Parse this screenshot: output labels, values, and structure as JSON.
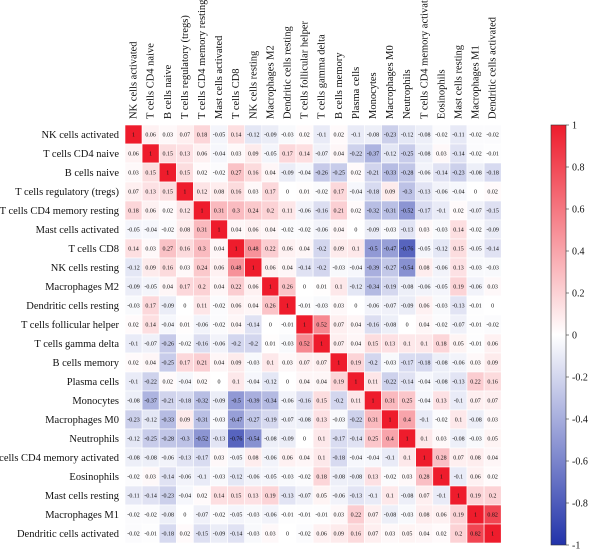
{
  "chart_data": {
    "type": "heatmap",
    "title": "",
    "labels": [
      "NK cells activated",
      "T cells CD4 naive",
      "B cells naive",
      "T cells regulatory (tregs)",
      "T cells CD4 memory resting",
      "Mast cells activated",
      "T cells CD8",
      "NK cells resting",
      "Macrophages M2",
      "Dendritic cells resting",
      "T cells follicular helper",
      "T cells gamma delta",
      "B cells memory",
      "Plasma cells",
      "Monocytes",
      "Macrophages M0",
      "Neutrophils",
      "T cells CD4 memory activated",
      "Eosinophils",
      "Mast cells resting",
      "Macrophages M1",
      "Dendritic cells activated"
    ],
    "values": [
      [
        "1",
        "0.06",
        "0.03",
        "0.07",
        "0.18",
        "-0.05",
        "0.14",
        "-0.12",
        "-0.09",
        "-0.03",
        "0.02",
        "-0.1",
        "0.02",
        "-0.1",
        "-0.08",
        "-0.23",
        "-0.12",
        "-0.08",
        "-0.02",
        "-0.11",
        "-0.02",
        "-0.02"
      ],
      [
        "0.06",
        "1",
        "0.15",
        "0.13",
        "0.06",
        "-0.04",
        "0.03",
        "0.09",
        "-0.05",
        "0.17",
        "0.14",
        "-0.07",
        "0.04",
        "-0.22",
        "-0.37",
        "-0.12",
        "-0.25",
        "-0.08",
        "0.03",
        "-0.14",
        "-0.02",
        "-0.01"
      ],
      [
        "0.03",
        "0.15",
        "1",
        "0.15",
        "0.02",
        "-0.02",
        "0.27",
        "0.16",
        "0.04",
        "-0.09",
        "-0.04",
        "-0.26",
        "-0.25",
        "0.02",
        "-0.21",
        "-0.33",
        "-0.28",
        "-0.06",
        "-0.14",
        "-0.23",
        "-0.08",
        "-0.18"
      ],
      [
        "0.07",
        "0.13",
        "0.15",
        "1",
        "0.12",
        "0.08",
        "0.16",
        "0.03",
        "0.17",
        "0",
        "0.01",
        "-0.02",
        "0.17",
        "-0.04",
        "-0.18",
        "0.09",
        "-0.3",
        "-0.13",
        "-0.06",
        "-0.04",
        "0",
        "0.02"
      ],
      [
        "0.18",
        "0.06",
        "0.02",
        "0.12",
        "1",
        "0.31",
        "0.3",
        "0.24",
        "0.2",
        "0.11",
        "-0.06",
        "-0.16",
        "0.21",
        "0.02",
        "-0.32",
        "-0.31",
        "-0.52",
        "-0.17",
        "-0.1",
        "0.02",
        "-0.07",
        "-0.15"
      ],
      [
        "-0.05",
        "-0.04",
        "-0.02",
        "0.08",
        "0.31",
        "1",
        "0.04",
        "0.06",
        "0.04",
        "-0.02",
        "-0.02",
        "-0.06",
        "0.04",
        "0",
        "-0.09",
        "-0.03",
        "-0.13",
        "0.03",
        "-0.03",
        "0.14",
        "-0.02",
        "-0.09"
      ],
      [
        "0.14",
        "0.03",
        "0.27",
        "0.16",
        "0.3",
        "0.04",
        "1",
        "0.48",
        "0.22",
        "0.06",
        "0.04",
        "-0.2",
        "0.09",
        "0.1",
        "-0.5",
        "-0.47",
        "-0.76",
        "-0.05",
        "-0.12",
        "0.15",
        "-0.05",
        "-0.14"
      ],
      [
        "-0.12",
        "0.09",
        "0.16",
        "0.03",
        "0.24",
        "0.06",
        "0.48",
        "1",
        "0.06",
        "0.04",
        "-0.14",
        "-0.2",
        "-0.03",
        "-0.04",
        "-0.39",
        "-0.27",
        "-0.54",
        "0.08",
        "-0.06",
        "0.13",
        "-0.03",
        "-0.03"
      ],
      [
        "-0.09",
        "-0.05",
        "0.04",
        "0.17",
        "0.2",
        "0.04",
        "0.22",
        "0.06",
        "1",
        "0.26",
        "0",
        "0.01",
        "0.1",
        "-0.12",
        "-0.34",
        "-0.19",
        "-0.08",
        "-0.06",
        "-0.05",
        "0.19",
        "-0.06",
        "0.03"
      ],
      [
        "-0.03",
        "0.17",
        "-0.09",
        "0",
        "0.11",
        "-0.02",
        "0.06",
        "0.04",
        "0.26",
        "1",
        "-0.01",
        "-0.03",
        "0.03",
        "0",
        "-0.06",
        "-0.07",
        "-0.09",
        "0.06",
        "-0.03",
        "-0.13",
        "-0.01",
        "0"
      ],
      [
        "0.02",
        "0.14",
        "-0.04",
        "0.01",
        "-0.06",
        "-0.02",
        "0.04",
        "-0.14",
        "0",
        "-0.01",
        "1",
        "0.52",
        "0.07",
        "0.04",
        "-0.16",
        "-0.08",
        "0",
        "0.04",
        "-0.02",
        "-0.07",
        "-0.01",
        "-0.02"
      ],
      [
        "-0.1",
        "-0.07",
        "-0.26",
        "-0.02",
        "-0.16",
        "-0.06",
        "-0.2",
        "-0.2",
        "0.01",
        "-0.03",
        "0.52",
        "1",
        "0.07",
        "0.04",
        "0.15",
        "0.13",
        "0.1",
        "0.1",
        "0.18",
        "0.05",
        "-0.01",
        "0.06"
      ],
      [
        "0.02",
        "0.04",
        "-0.25",
        "0.17",
        "0.21",
        "0.04",
        "0.09",
        "-0.03",
        "0.1",
        "0.03",
        "0.07",
        "0.07",
        "1",
        "0.19",
        "-0.2",
        "-0.03",
        "-0.17",
        "-0.18",
        "-0.08",
        "-0.06",
        "0.03",
        "0.09"
      ],
      [
        "-0.1",
        "-0.22",
        "0.02",
        "-0.04",
        "0.02",
        "0",
        "0.1",
        "-0.04",
        "-0.12",
        "0",
        "0.04",
        "0.04",
        "0.19",
        "1",
        "0.11",
        "-0.22",
        "-0.14",
        "-0.04",
        "-0.08",
        "-0.13",
        "0.22",
        "0.16"
      ],
      [
        "-0.08",
        "-0.37",
        "-0.21",
        "-0.18",
        "-0.32",
        "-0.09",
        "-0.5",
        "-0.39",
        "-0.34",
        "-0.06",
        "-0.16",
        "0.15",
        "-0.2",
        "0.11",
        "1",
        "0.31",
        "0.25",
        "-0.04",
        "0.13",
        "-0.1",
        "0.07",
        "0.07"
      ],
      [
        "-0.23",
        "-0.12",
        "-0.33",
        "0.09",
        "-0.31",
        "-0.03",
        "-0.47",
        "-0.27",
        "-0.19",
        "-0.07",
        "-0.08",
        "0.13",
        "-0.03",
        "-0.22",
        "0.31",
        "1",
        "0.4",
        "-0.1",
        "-0.02",
        "0.1",
        "-0.08",
        "0.03"
      ],
      [
        "-0.12",
        "-0.25",
        "-0.28",
        "-0.3",
        "-0.52",
        "-0.13",
        "-0.76",
        "-0.54",
        "-0.08",
        "-0.09",
        "0",
        "0.1",
        "-0.17",
        "-0.14",
        "0.25",
        "0.4",
        "1",
        "0.1",
        "0.03",
        "-0.08",
        "-0.03",
        "0.05"
      ],
      [
        "-0.08",
        "-0.08",
        "-0.06",
        "-0.13",
        "-0.17",
        "0.03",
        "-0.05",
        "0.08",
        "-0.06",
        "0.06",
        "0.04",
        "0.1",
        "-0.18",
        "-0.04",
        "-0.04",
        "-0.1",
        "0.1",
        "1",
        "0.28",
        "0.07",
        "0.08",
        "0.04"
      ],
      [
        "-0.02",
        "0.03",
        "-0.14",
        "-0.06",
        "-0.1",
        "-0.03",
        "-0.12",
        "-0.06",
        "-0.05",
        "-0.03",
        "-0.02",
        "0.18",
        "-0.08",
        "-0.08",
        "0.13",
        "-0.02",
        "0.03",
        "0.28",
        "1",
        "-0.1",
        "0.06",
        "0.02"
      ],
      [
        "-0.11",
        "-0.14",
        "-0.23",
        "-0.04",
        "0.02",
        "0.14",
        "0.15",
        "0.13",
        "0.19",
        "-0.13",
        "-0.07",
        "0.05",
        "-0.06",
        "-0.13",
        "-0.1",
        "0.1",
        "-0.08",
        "0.07",
        "-0.1",
        "1",
        "0.19",
        "0.2"
      ],
      [
        "-0.02",
        "-0.02",
        "-0.08",
        "0",
        "-0.07",
        "-0.02",
        "-0.05",
        "-0.03",
        "-0.06",
        "-0.01",
        "-0.01",
        "-0.01",
        "0.03",
        "0.22",
        "0.07",
        "-0.08",
        "-0.03",
        "0.08",
        "0.06",
        "0.19",
        "1",
        "0.82"
      ],
      [
        "-0.02",
        "-0.01",
        "-0.18",
        "0.02",
        "-0.15",
        "-0.09",
        "-0.14",
        "-0.03",
        "0.03",
        "0",
        "-0.02",
        "0.06",
        "0.09",
        "0.16",
        "0.07",
        "0.03",
        "0.05",
        "0.04",
        "0.02",
        "0.2",
        "0.82",
        "1"
      ]
    ],
    "color_scale": {
      "range": [
        -1,
        1
      ],
      "ticks": [
        "1",
        "0.8",
        "0.6",
        "0.4",
        "0.2",
        "0",
        "-0.2",
        "-0.4",
        "-0.6",
        "-0.8",
        "-1"
      ],
      "colors": {
        "negative": "#2233aa",
        "zero": "#ffffff",
        "positive": "#ee1c2c"
      }
    },
    "legend": "right"
  }
}
